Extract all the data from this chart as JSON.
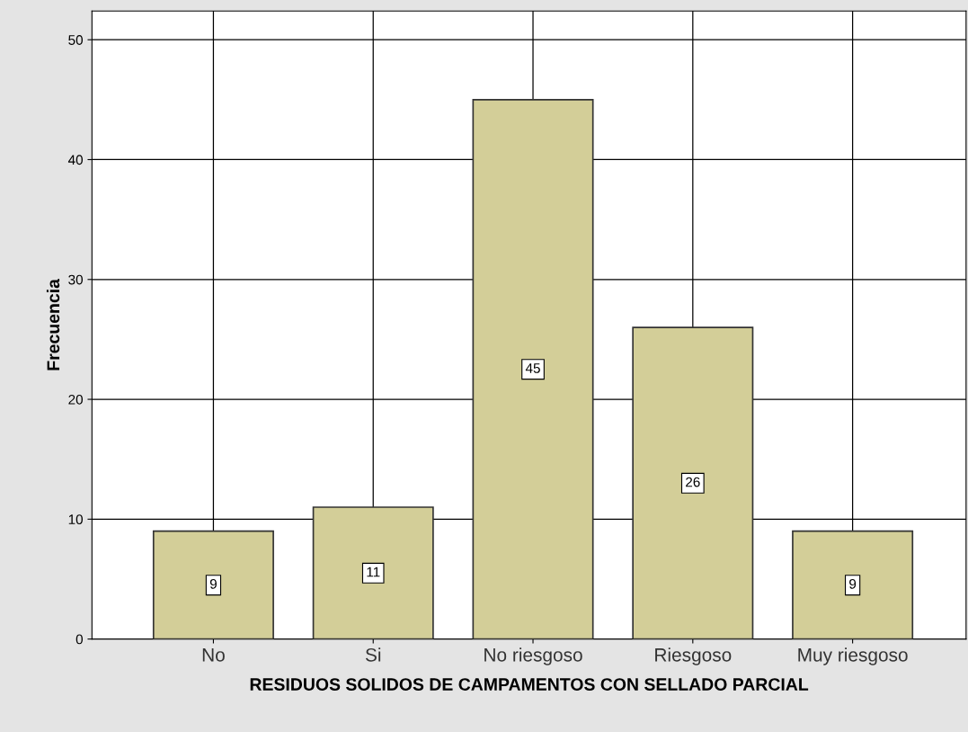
{
  "chart_data": {
    "type": "bar",
    "xlabel": "RESIDUOS SOLIDOS DE CAMPAMENTOS CON SELLADO PARCIAL",
    "ylabel": "Frecuencia",
    "categories": [
      "No",
      "Si",
      "No riesgoso",
      "Riesgoso",
      "Muy riesgoso"
    ],
    "values": [
      9,
      11,
      45,
      26,
      9
    ],
    "color": "#d3ce98",
    "ylim": [
      0,
      52.4
    ],
    "yticks": [
      0,
      10,
      20,
      30,
      40,
      50
    ],
    "grid": true,
    "data_labels": true
  }
}
